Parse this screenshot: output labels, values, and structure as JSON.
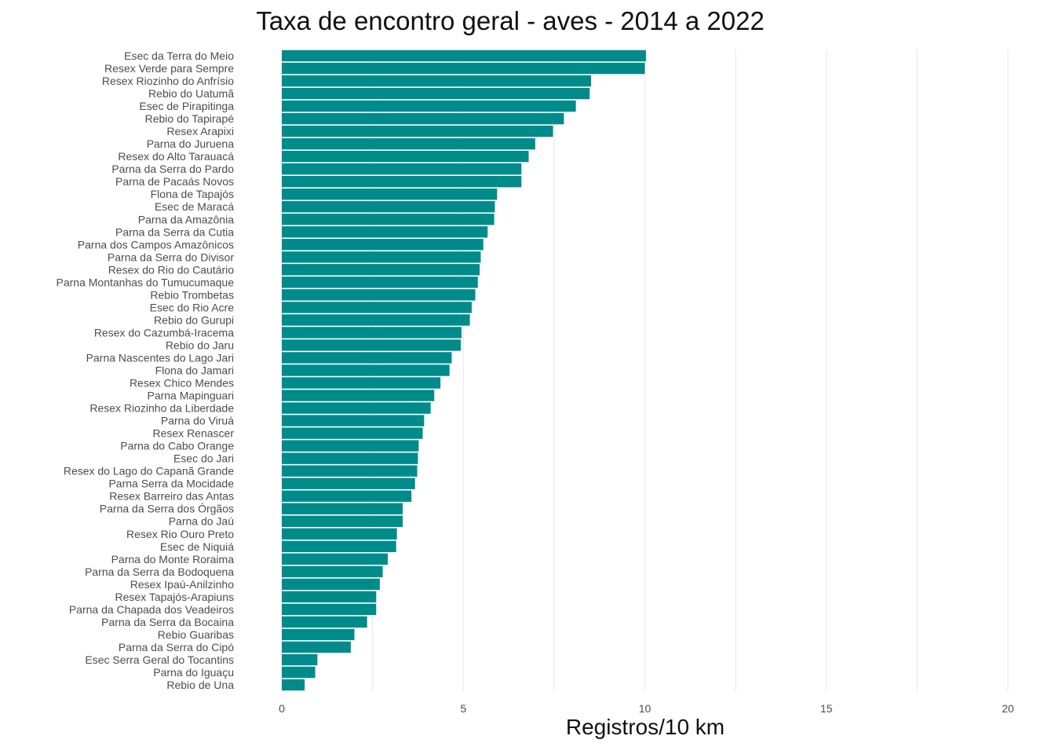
{
  "chart_data": {
    "type": "bar",
    "orientation": "horizontal",
    "title": "Taxa de encontro geral - aves - 2014 a 2022",
    "xlabel": "Registros/10 km",
    "ylabel": "",
    "xlim": [
      0,
      20
    ],
    "xticks": [
      0,
      5,
      10,
      15,
      20
    ],
    "grid": true,
    "bar_color": "#008b8b",
    "grid_color": "#ebebeb",
    "categories": [
      "Esec da Terra do Meio",
      "Resex Verde para Sempre",
      "Resex Riozinho do Anfrísio",
      "Rebio do Uatumã",
      "Esec de Pirapitinga",
      "Rebio do Tapirapé",
      "Resex Arapixi",
      "Parna do Juruena",
      "Resex do Alto Tarauacá",
      "Parna da Serra do Pardo",
      "Parna de Pacaás Novos",
      "Flona de Tapajós",
      "Esec de Maracá",
      "Parna da Amazônia",
      "Parna da Serra da Cutia",
      "Parna dos Campos Amazônicos",
      "Parna da Serra do Divisor",
      "Resex do Rio do Cautário",
      "Parna Montanhas do Tumucumaque",
      "Rebio Trombetas",
      "Esec do Rio Acre",
      "Rebio do Gurupi",
      "Resex do Cazumbá-Iracema",
      "Rebio do Jaru",
      "Parna Nascentes do Lago Jari",
      "Flona do Jamari",
      "Resex Chico Mendes",
      "Parna Mapinguari",
      "Resex Riozinho da Liberdade",
      "Parna do Viruá",
      "Resex Renascer",
      "Parna do Cabo Orange",
      "Esec do Jari",
      "Resex do Lago do Capanã Grande",
      "Parna Serra da Mocidade",
      "Resex Barreiro das Antas",
      "Parna da Serra dos Órgãos",
      "Parna do Jaú",
      "Resex Rio Ouro Preto",
      "Esec de Niquiá",
      "Parna do Monte Roraima",
      "Parna da Serra da Bodoquena",
      "Resex Ipaú-Anilzinho",
      "Resex Tapajós-Arapiuns",
      "Parna da Chapada dos Veadeiros",
      "Parna da Serra da Bocaina",
      "Rebio Guaribas",
      "Parna da Serra do Cipó",
      "Esec Serra Geral do Tocantins",
      "Parna do Iguaçu",
      "Rebio de Una"
    ],
    "values": [
      10.03,
      10.0,
      8.52,
      8.48,
      8.1,
      7.77,
      7.47,
      6.98,
      6.8,
      6.6,
      6.6,
      5.93,
      5.87,
      5.85,
      5.67,
      5.55,
      5.48,
      5.45,
      5.4,
      5.33,
      5.23,
      5.18,
      4.95,
      4.93,
      4.68,
      4.62,
      4.37,
      4.2,
      4.1,
      3.92,
      3.88,
      3.77,
      3.75,
      3.73,
      3.67,
      3.57,
      3.33,
      3.33,
      3.17,
      3.15,
      2.92,
      2.78,
      2.7,
      2.6,
      2.6,
      2.35,
      2.0,
      1.9,
      0.98,
      0.92,
      0.63
    ]
  }
}
